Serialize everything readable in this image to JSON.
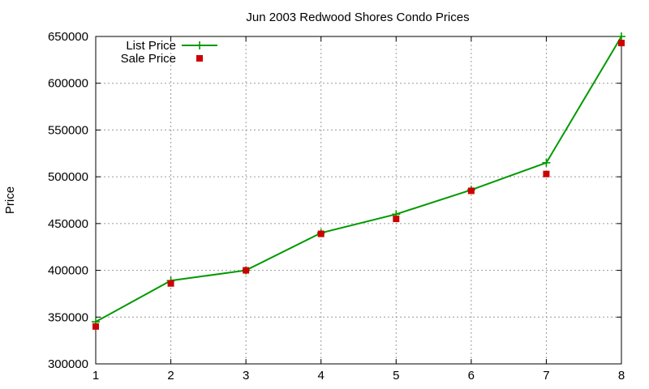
{
  "chart_data": {
    "type": "line",
    "title": "Jun 2003 Redwood Shores Condo Prices",
    "xlabel": "",
    "ylabel": "Price",
    "x": [
      1,
      2,
      3,
      4,
      5,
      6,
      7,
      8
    ],
    "xlim": [
      1,
      8
    ],
    "ylim": [
      300000,
      650000
    ],
    "yticks": [
      300000,
      350000,
      400000,
      450000,
      500000,
      550000,
      600000,
      650000
    ],
    "xticks": [
      1,
      2,
      3,
      4,
      5,
      6,
      7,
      8
    ],
    "grid": true,
    "legend_position": "top-left",
    "series": [
      {
        "name": "List Price",
        "style": "line-points",
        "marker": "plus",
        "color": "#009900",
        "values": [
          345000,
          389000,
          400000,
          440000,
          460000,
          486000,
          515000,
          650000
        ]
      },
      {
        "name": "Sale Price",
        "style": "points",
        "marker": "square",
        "color": "#cc0000",
        "values": [
          340000,
          386000,
          400000,
          439000,
          455000,
          485000,
          503000,
          643000
        ]
      }
    ]
  }
}
